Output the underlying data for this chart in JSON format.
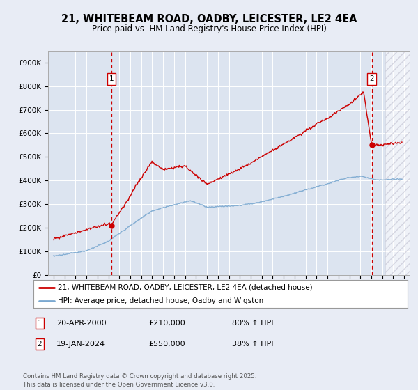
{
  "title": "21, WHITEBEAM ROAD, OADBY, LEICESTER, LE2 4EA",
  "subtitle": "Price paid vs. HM Land Registry's House Price Index (HPI)",
  "fig_bg": "#e8ecf5",
  "plot_bg": "#dce4f0",
  "red_color": "#cc0000",
  "blue_color": "#7aa8d0",
  "grid_color": "#ffffff",
  "annotation1_date": "20-APR-2000",
  "annotation1_price": "£210,000",
  "annotation1_hpi": "80% ↑ HPI",
  "annotation2_date": "19-JAN-2024",
  "annotation2_price": "£550,000",
  "annotation2_hpi": "38% ↑ HPI",
  "footer": "Contains HM Land Registry data © Crown copyright and database right 2025.\nThis data is licensed under the Open Government Licence v3.0.",
  "legend1": "21, WHITEBEAM ROAD, OADBY, LEICESTER, LE2 4EA (detached house)",
  "legend2": "HPI: Average price, detached house, Oadby and Wigston",
  "ylim": [
    0,
    950000
  ],
  "xlim_start": 1994.5,
  "xlim_end": 2027.5,
  "purchase1_year": 2000.29,
  "purchase1_price": 210000,
  "purchase2_year": 2024.05,
  "purchase2_price": 550000,
  "hatching_start": 2025.3
}
